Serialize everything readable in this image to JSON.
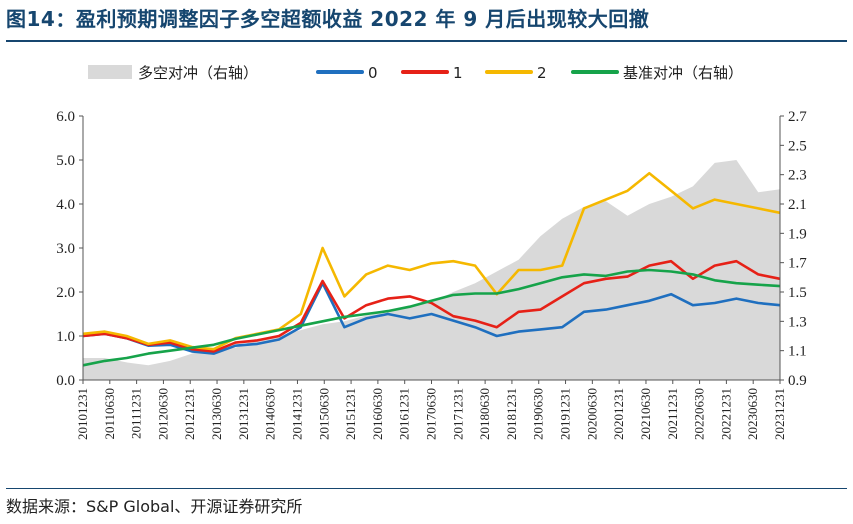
{
  "title": "图14：盈利预期调整因子多空超额收益 2022 年 9 月后出现较大回撤",
  "source": "数据来源：S&P Global、开源证券研究所",
  "chart_data": {
    "type": "line",
    "left_axis": {
      "ticks": [
        "0.0",
        "1.0",
        "2.0",
        "3.0",
        "4.0",
        "5.0",
        "6.0"
      ],
      "ylim": [
        0,
        6
      ]
    },
    "right_axis": {
      "ticks": [
        "0.9",
        "1.1",
        "1.3",
        "1.5",
        "1.7",
        "1.9",
        "2.1",
        "2.3",
        "2.5",
        "2.7"
      ],
      "ylim": [
        0.9,
        2.7
      ]
    },
    "x_tick_labels": [
      "20101231",
      "20110630",
      "20111231",
      "20120630",
      "20121231",
      "20130630",
      "20131231",
      "20140630",
      "20141231",
      "20150630",
      "20151231",
      "20160630",
      "20161231",
      "20170630",
      "20171231",
      "20180630",
      "20181231",
      "20190630",
      "20191231",
      "20200630",
      "20201231",
      "20210630",
      "20211231",
      "20220630",
      "20221231",
      "20230630",
      "20231231"
    ],
    "legend": [
      "多空对冲（右轴）",
      "0",
      "1",
      "2",
      "基准对冲（右轴）"
    ],
    "series": [
      {
        "name": "多空对冲（右轴）",
        "axis": "right",
        "style": "area",
        "color": "#d9d9d9",
        "values": [
          1.05,
          1.05,
          1.02,
          1.0,
          1.03,
          1.08,
          1.12,
          1.12,
          1.18,
          1.2,
          1.24,
          1.28,
          1.3,
          1.34,
          1.36,
          1.4,
          1.43,
          1.5,
          1.56,
          1.64,
          1.72,
          1.88,
          2.0,
          2.08,
          2.12,
          2.02,
          2.1,
          2.15,
          2.22,
          2.38,
          2.4,
          2.18,
          2.2
        ]
      },
      {
        "name": "0",
        "axis": "left",
        "style": "line",
        "color": "#1f6fbf",
        "values": [
          1.0,
          1.05,
          0.95,
          0.78,
          0.8,
          0.65,
          0.6,
          0.78,
          0.82,
          0.92,
          1.2,
          2.2,
          1.2,
          1.4,
          1.5,
          1.4,
          1.5,
          1.35,
          1.2,
          1.0,
          1.1,
          1.15,
          1.2,
          1.55,
          1.6,
          1.7,
          1.8,
          1.95,
          1.7,
          1.75,
          1.85,
          1.75,
          1.7
        ]
      },
      {
        "name": "1",
        "axis": "left",
        "style": "line",
        "color": "#e62117",
        "values": [
          1.0,
          1.05,
          0.95,
          0.8,
          0.85,
          0.7,
          0.65,
          0.85,
          0.9,
          1.0,
          1.3,
          2.25,
          1.4,
          1.7,
          1.85,
          1.9,
          1.75,
          1.45,
          1.35,
          1.2,
          1.55,
          1.6,
          1.9,
          2.2,
          2.3,
          2.35,
          2.6,
          2.7,
          2.3,
          2.6,
          2.7,
          2.4,
          2.3
        ]
      },
      {
        "name": "2",
        "axis": "left",
        "style": "line",
        "color": "#f5b800",
        "values": [
          1.05,
          1.1,
          1.0,
          0.82,
          0.9,
          0.75,
          0.7,
          0.95,
          1.05,
          1.15,
          1.5,
          3.0,
          1.9,
          2.4,
          2.6,
          2.5,
          2.65,
          2.7,
          2.6,
          1.95,
          2.5,
          2.5,
          2.6,
          3.9,
          4.1,
          4.3,
          4.7,
          4.3,
          3.9,
          4.1,
          4.0,
          3.9,
          3.8
        ]
      },
      {
        "name": "基准对冲（右轴）",
        "axis": "right",
        "style": "line",
        "color": "#16a34a",
        "values": [
          1.0,
          1.03,
          1.05,
          1.08,
          1.1,
          1.12,
          1.14,
          1.18,
          1.21,
          1.24,
          1.27,
          1.3,
          1.33,
          1.35,
          1.37,
          1.4,
          1.44,
          1.48,
          1.49,
          1.49,
          1.52,
          1.56,
          1.6,
          1.62,
          1.61,
          1.64,
          1.65,
          1.64,
          1.62,
          1.58,
          1.56,
          1.55,
          1.54
        ]
      }
    ],
    "colors": {
      "title": "#16466f",
      "area": "#d9d9d9",
      "s0": "#1f6fbf",
      "s1": "#e62117",
      "s2": "#f5b800",
      "bench": "#16a34a"
    }
  }
}
